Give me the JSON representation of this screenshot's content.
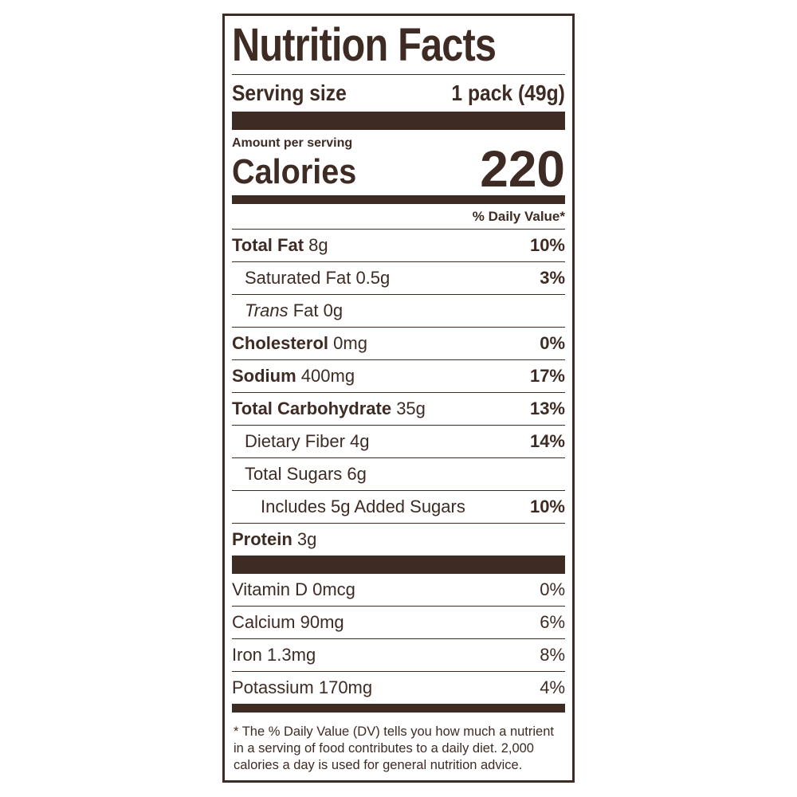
{
  "title": "Nutrition Facts",
  "serving": {
    "label": "Serving size",
    "value": "1 pack (49g)"
  },
  "calories": {
    "amount_per_serving": "Amount per serving",
    "label": "Calories",
    "value": "220"
  },
  "dv_header": "% Daily Value*",
  "nutrients": [
    {
      "name": "Total Fat",
      "amount": "8g",
      "dv": "10%"
    },
    {
      "name": "Saturated Fat",
      "amount": "0.5g",
      "dv": "3%"
    },
    {
      "italic": "Trans",
      "name": "Fat",
      "amount": "0g"
    },
    {
      "name": "Cholesterol",
      "amount": "0mg",
      "dv": "0%"
    },
    {
      "name": "Sodium",
      "amount": "400mg",
      "dv": "17%"
    },
    {
      "name": "Total Carbohydrate",
      "amount": "35g",
      "dv": "13%"
    },
    {
      "name": "Dietary Fiber",
      "amount": "4g",
      "dv": "14%"
    },
    {
      "name": "Total Sugars",
      "amount": "6g"
    },
    {
      "name": "Includes 5g Added Sugars",
      "dv": "10%"
    },
    {
      "name": "Protein",
      "amount": "3g"
    }
  ],
  "vitamins": [
    {
      "name": "Vitamin D",
      "amount": "0mcg",
      "dv": "0%"
    },
    {
      "name": "Calcium",
      "amount": "90mg",
      "dv": "6%"
    },
    {
      "name": "Iron",
      "amount": "1.3mg",
      "dv": "8%"
    },
    {
      "name": "Potassium",
      "amount": "170mg",
      "dv": "4%"
    }
  ],
  "footnote": "* The % Daily Value (DV) tells you how much a nutrient in a serving of food contributes to a daily diet. 2,000 calories a day is used for general nutrition advice."
}
